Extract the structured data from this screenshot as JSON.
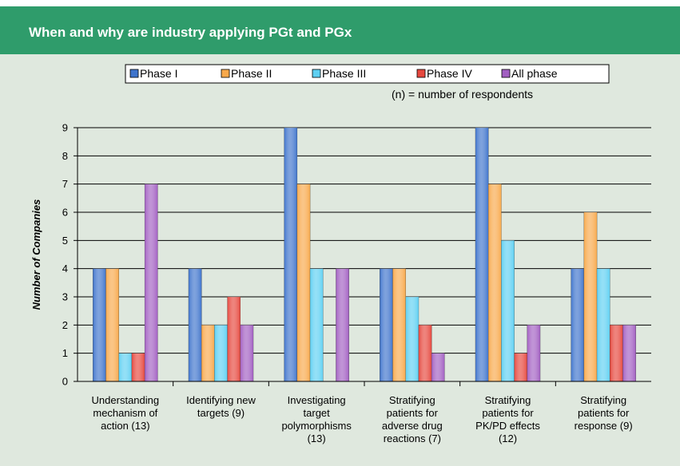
{
  "chart_data": {
    "type": "bar",
    "title": "When and why are industry applying PGt and PGx",
    "note": "(n) = number of respondents",
    "y_label": "Number of Companies",
    "categories": [
      [
        "Understanding",
        "mechanism of",
        "action (13)"
      ],
      [
        "Identifying new",
        "targets (9)"
      ],
      [
        "Investigating",
        "target",
        "polymorphisms",
        "(13)"
      ],
      [
        "Stratifying",
        "patients for",
        "adverse drug",
        "reactions (7)"
      ],
      [
        "Stratifying",
        "patients for",
        "PK/PD effects",
        "(12)"
      ],
      [
        "Stratifying",
        "patients for",
        "response (9)"
      ]
    ],
    "series": [
      {
        "name": "Phase I",
        "color": "#3f74cc",
        "values": [
          4,
          4,
          9,
          4,
          9,
          4
        ]
      },
      {
        "name": "Phase II",
        "color": "#f8a94c",
        "values": [
          4,
          2,
          7,
          4,
          7,
          6
        ]
      },
      {
        "name": "Phase III",
        "color": "#5fd0f2",
        "values": [
          1,
          2,
          4,
          3,
          5,
          4
        ]
      },
      {
        "name": "Phase IV",
        "color": "#e6483e",
        "values": [
          1,
          3,
          0,
          2,
          1,
          2
        ]
      },
      {
        "name": "All phase",
        "color": "#a25fc2",
        "values": [
          7,
          2,
          4,
          1,
          2,
          2
        ]
      }
    ],
    "ylim": [
      0,
      9
    ],
    "yticks": [
      0,
      1,
      2,
      3,
      4,
      5,
      6,
      7,
      8,
      9
    ],
    "grid": true
  }
}
